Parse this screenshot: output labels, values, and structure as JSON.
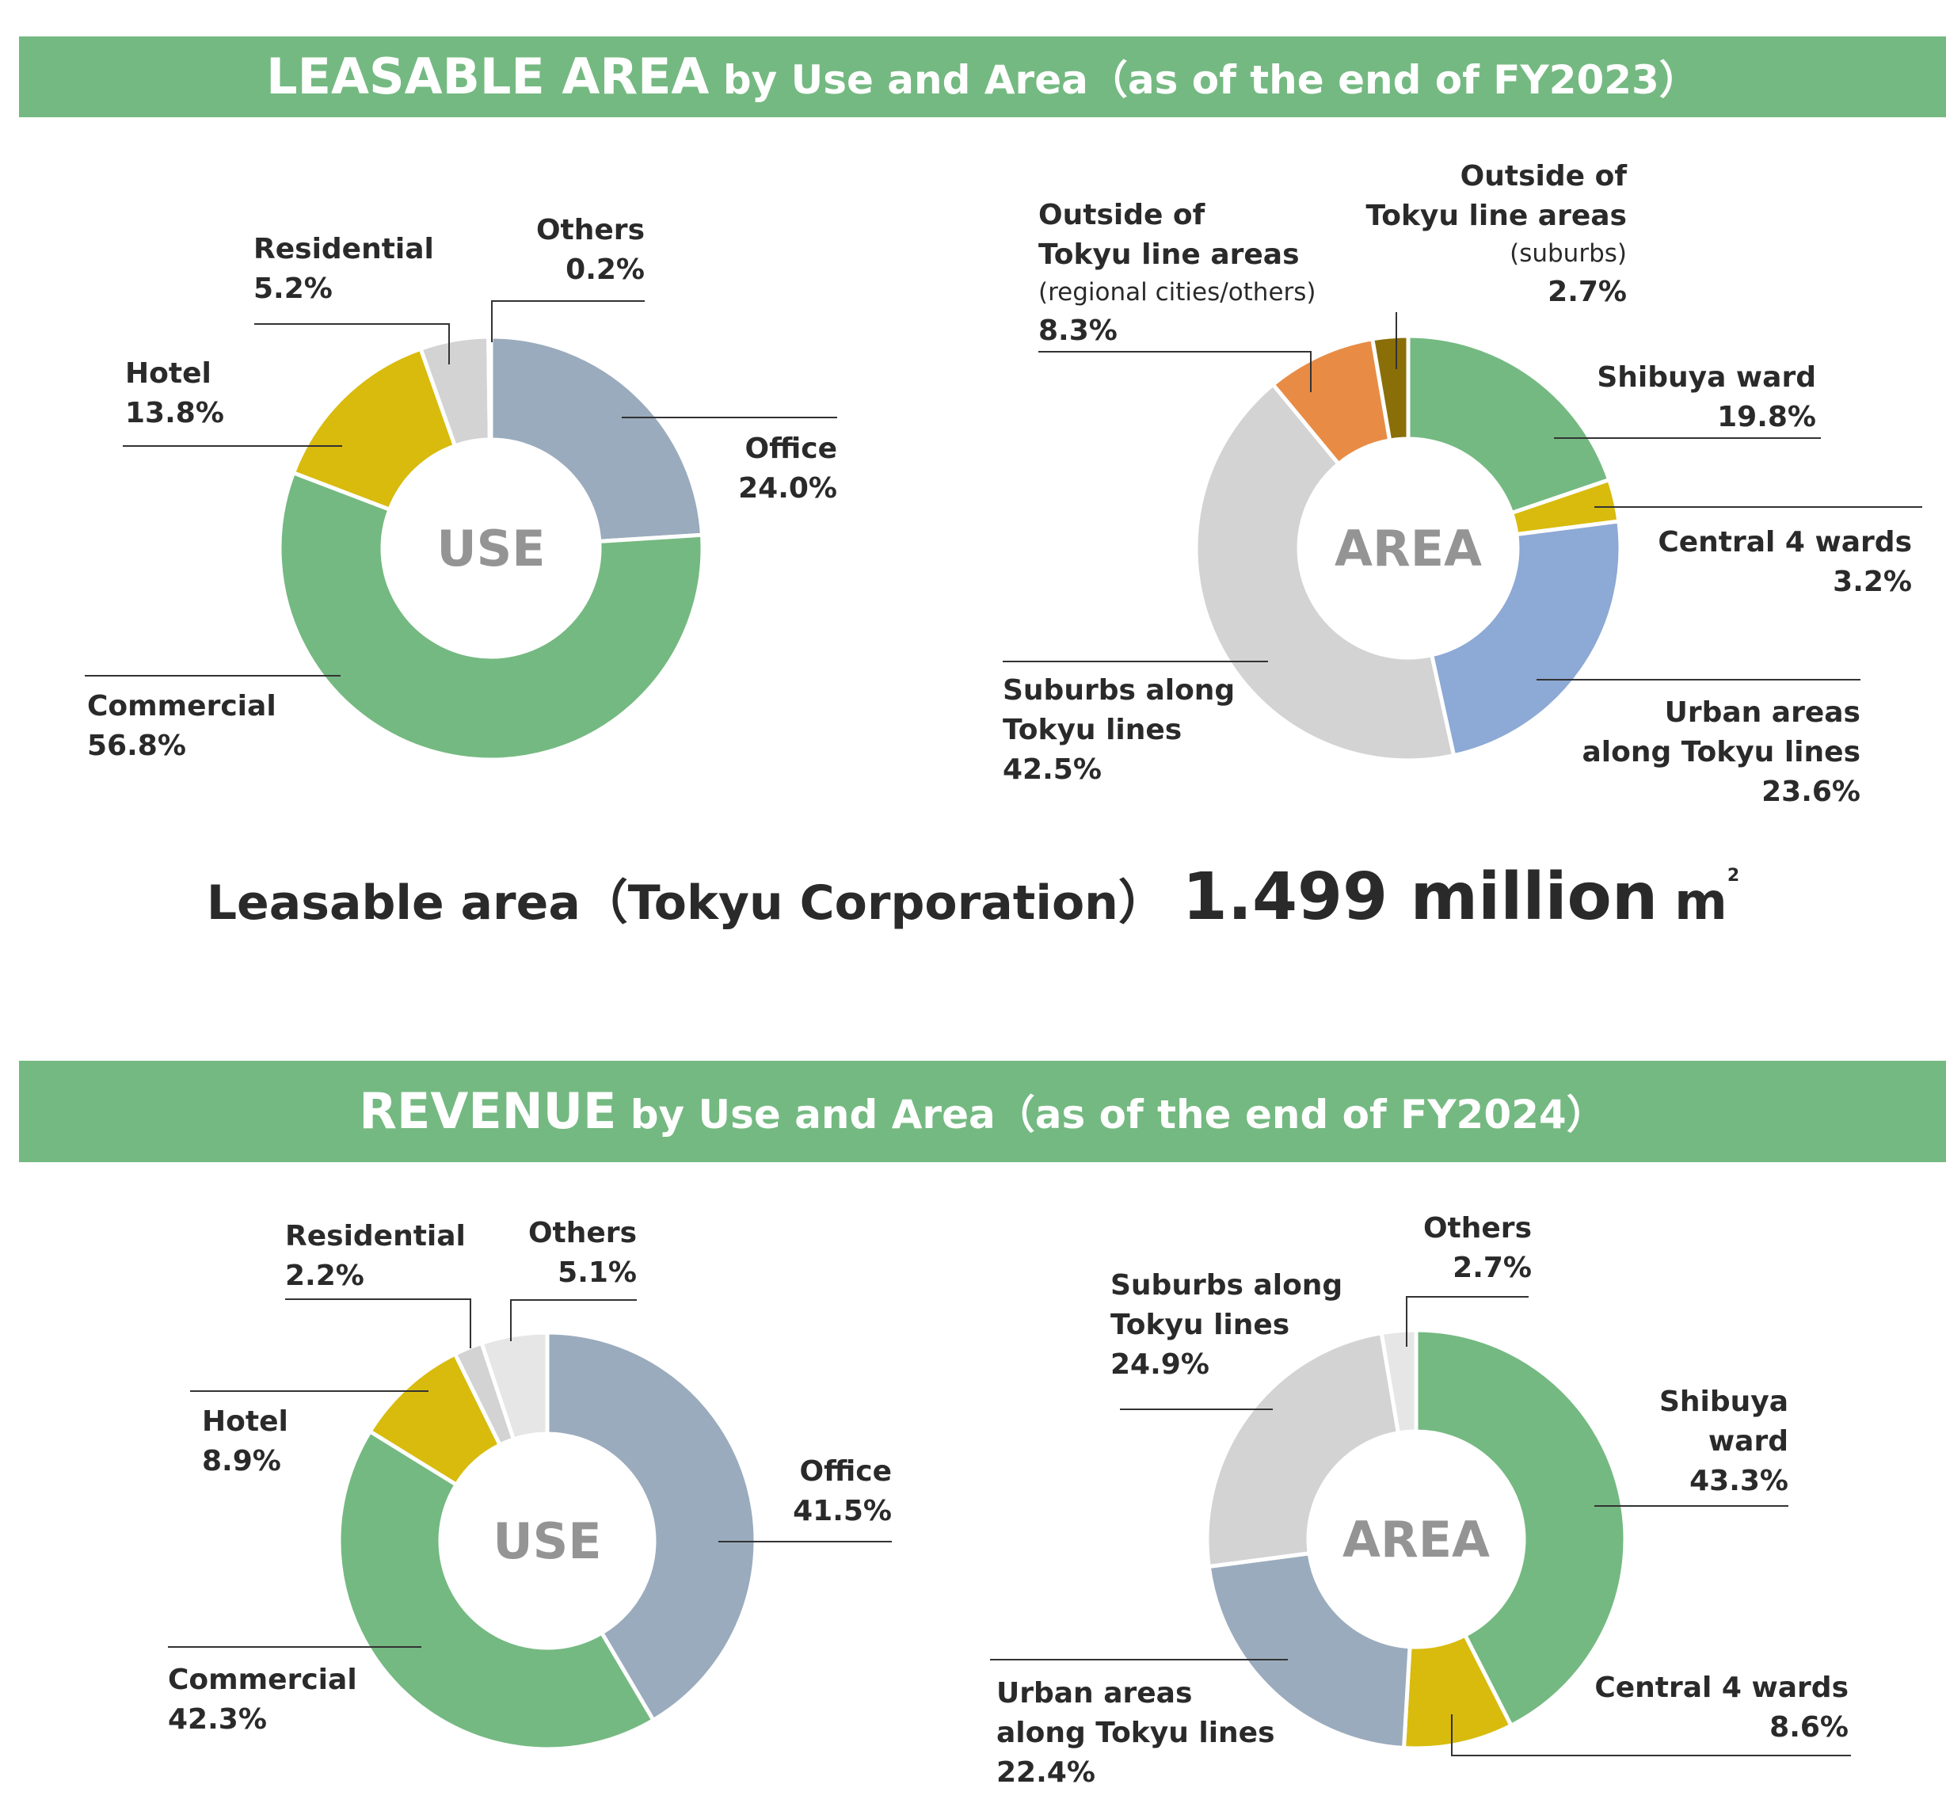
{
  "banners": {
    "area_big": "LEASABLE AREA",
    "area_small": " by Use and Area（as of the end of FY2023）",
    "revenue_big": "REVENUE",
    "revenue_small": " by Use and Area（as of the end of FY2024）"
  },
  "total": {
    "label": "Leasable area（Tokyu Corporation）",
    "value": "1.499 million",
    "unit": "m",
    "unit_sup": "2"
  },
  "colors": {
    "banner": "#74b981",
    "office": "#9aabbd",
    "commercial": "#74b981",
    "hotel": "#d8bb0d",
    "residential": "#d3d3d3",
    "others": "#e6e6e6",
    "shibuya": "#74b981",
    "central4": "#d8bb0d",
    "urban_area": "#8da9d5",
    "urban_rev": "#9aabbd",
    "suburbs": "#d3d3d3",
    "outside_regional": "#e88c45",
    "outside_suburbs": "#8a6e08"
  },
  "chart_data": [
    {
      "id": "area_use",
      "type": "pie",
      "center_label": "USE",
      "categories": [
        "Office",
        "Commercial",
        "Hotel",
        "Residential",
        "Others"
      ],
      "values": [
        24.0,
        56.8,
        13.8,
        5.2,
        0.2
      ],
      "value_labels": [
        "24.0%",
        "56.8%",
        "13.8%",
        "5.2%",
        "0.2%"
      ],
      "colors": [
        "#9aabbd",
        "#74b981",
        "#d8bb0d",
        "#d3d3d3",
        "#e6e6e6"
      ]
    },
    {
      "id": "area_area",
      "type": "pie",
      "center_label": "AREA",
      "categories": [
        "Shibuya ward",
        "Central 4 wards",
        "Urban areas along Tokyu lines",
        "Suburbs along Tokyu lines",
        "Outside of Tokyu line areas (regional cities/others)",
        "Outside of Tokyu line areas (suburbs)"
      ],
      "values": [
        19.8,
        3.2,
        23.6,
        42.5,
        8.3,
        2.7
      ],
      "value_labels": [
        "19.8%",
        "3.2%",
        "23.6%",
        "42.5%",
        "8.3%",
        "2.7%"
      ],
      "colors": [
        "#74b981",
        "#d8bb0d",
        "#8da9d5",
        "#d3d3d3",
        "#e88c45",
        "#8a6e08"
      ]
    },
    {
      "id": "rev_use",
      "type": "pie",
      "center_label": "USE",
      "categories": [
        "Office",
        "Commercial",
        "Hotel",
        "Residential",
        "Others"
      ],
      "values": [
        41.5,
        42.3,
        8.9,
        2.2,
        5.1
      ],
      "value_labels": [
        "41.5%",
        "42.3%",
        "8.9%",
        "2.2%",
        "5.1%"
      ],
      "colors": [
        "#9aabbd",
        "#74b981",
        "#d8bb0d",
        "#d3d3d3",
        "#e6e6e6"
      ]
    },
    {
      "id": "rev_area",
      "type": "pie",
      "center_label": "AREA",
      "categories": [
        "Shibuya ward",
        "Central 4 wards",
        "Urban areas along Tokyu lines",
        "Suburbs along Tokyu lines",
        "Others"
      ],
      "values": [
        43.3,
        8.6,
        22.4,
        24.9,
        2.7
      ],
      "value_labels": [
        "43.3%",
        "8.6%",
        "22.4%",
        "24.9%",
        "2.7%"
      ],
      "colors": [
        "#74b981",
        "#d8bb0d",
        "#9aabbd",
        "#d3d3d3",
        "#e6e6e6"
      ]
    }
  ],
  "labels": {
    "area_use": [
      [
        "Office"
      ],
      [
        "Commercial"
      ],
      [
        "Hotel"
      ],
      [
        "Residential"
      ],
      [
        "Others"
      ]
    ],
    "area_area": [
      [
        "Shibuya ward"
      ],
      [
        "Central 4 wards"
      ],
      [
        "Urban areas",
        "along Tokyu lines"
      ],
      [
        "Suburbs along",
        "Tokyu lines"
      ],
      [
        "Outside of",
        "Tokyu line areas"
      ],
      [
        "Outside of",
        "Tokyu line areas"
      ]
    ],
    "area_area_notes": [
      "",
      "",
      "",
      "",
      "(regional cities/others)",
      "(suburbs)"
    ],
    "rev_use": [
      [
        "Office"
      ],
      [
        "Commercial"
      ],
      [
        "Hotel"
      ],
      [
        "Residential"
      ],
      [
        "Others"
      ]
    ],
    "rev_area": [
      [
        "Shibuya",
        "ward"
      ],
      [
        "Central 4 wards"
      ],
      [
        "Urban areas",
        "along Tokyu lines"
      ],
      [
        "Suburbs along",
        "Tokyu lines"
      ],
      [
        "Others"
      ]
    ]
  }
}
